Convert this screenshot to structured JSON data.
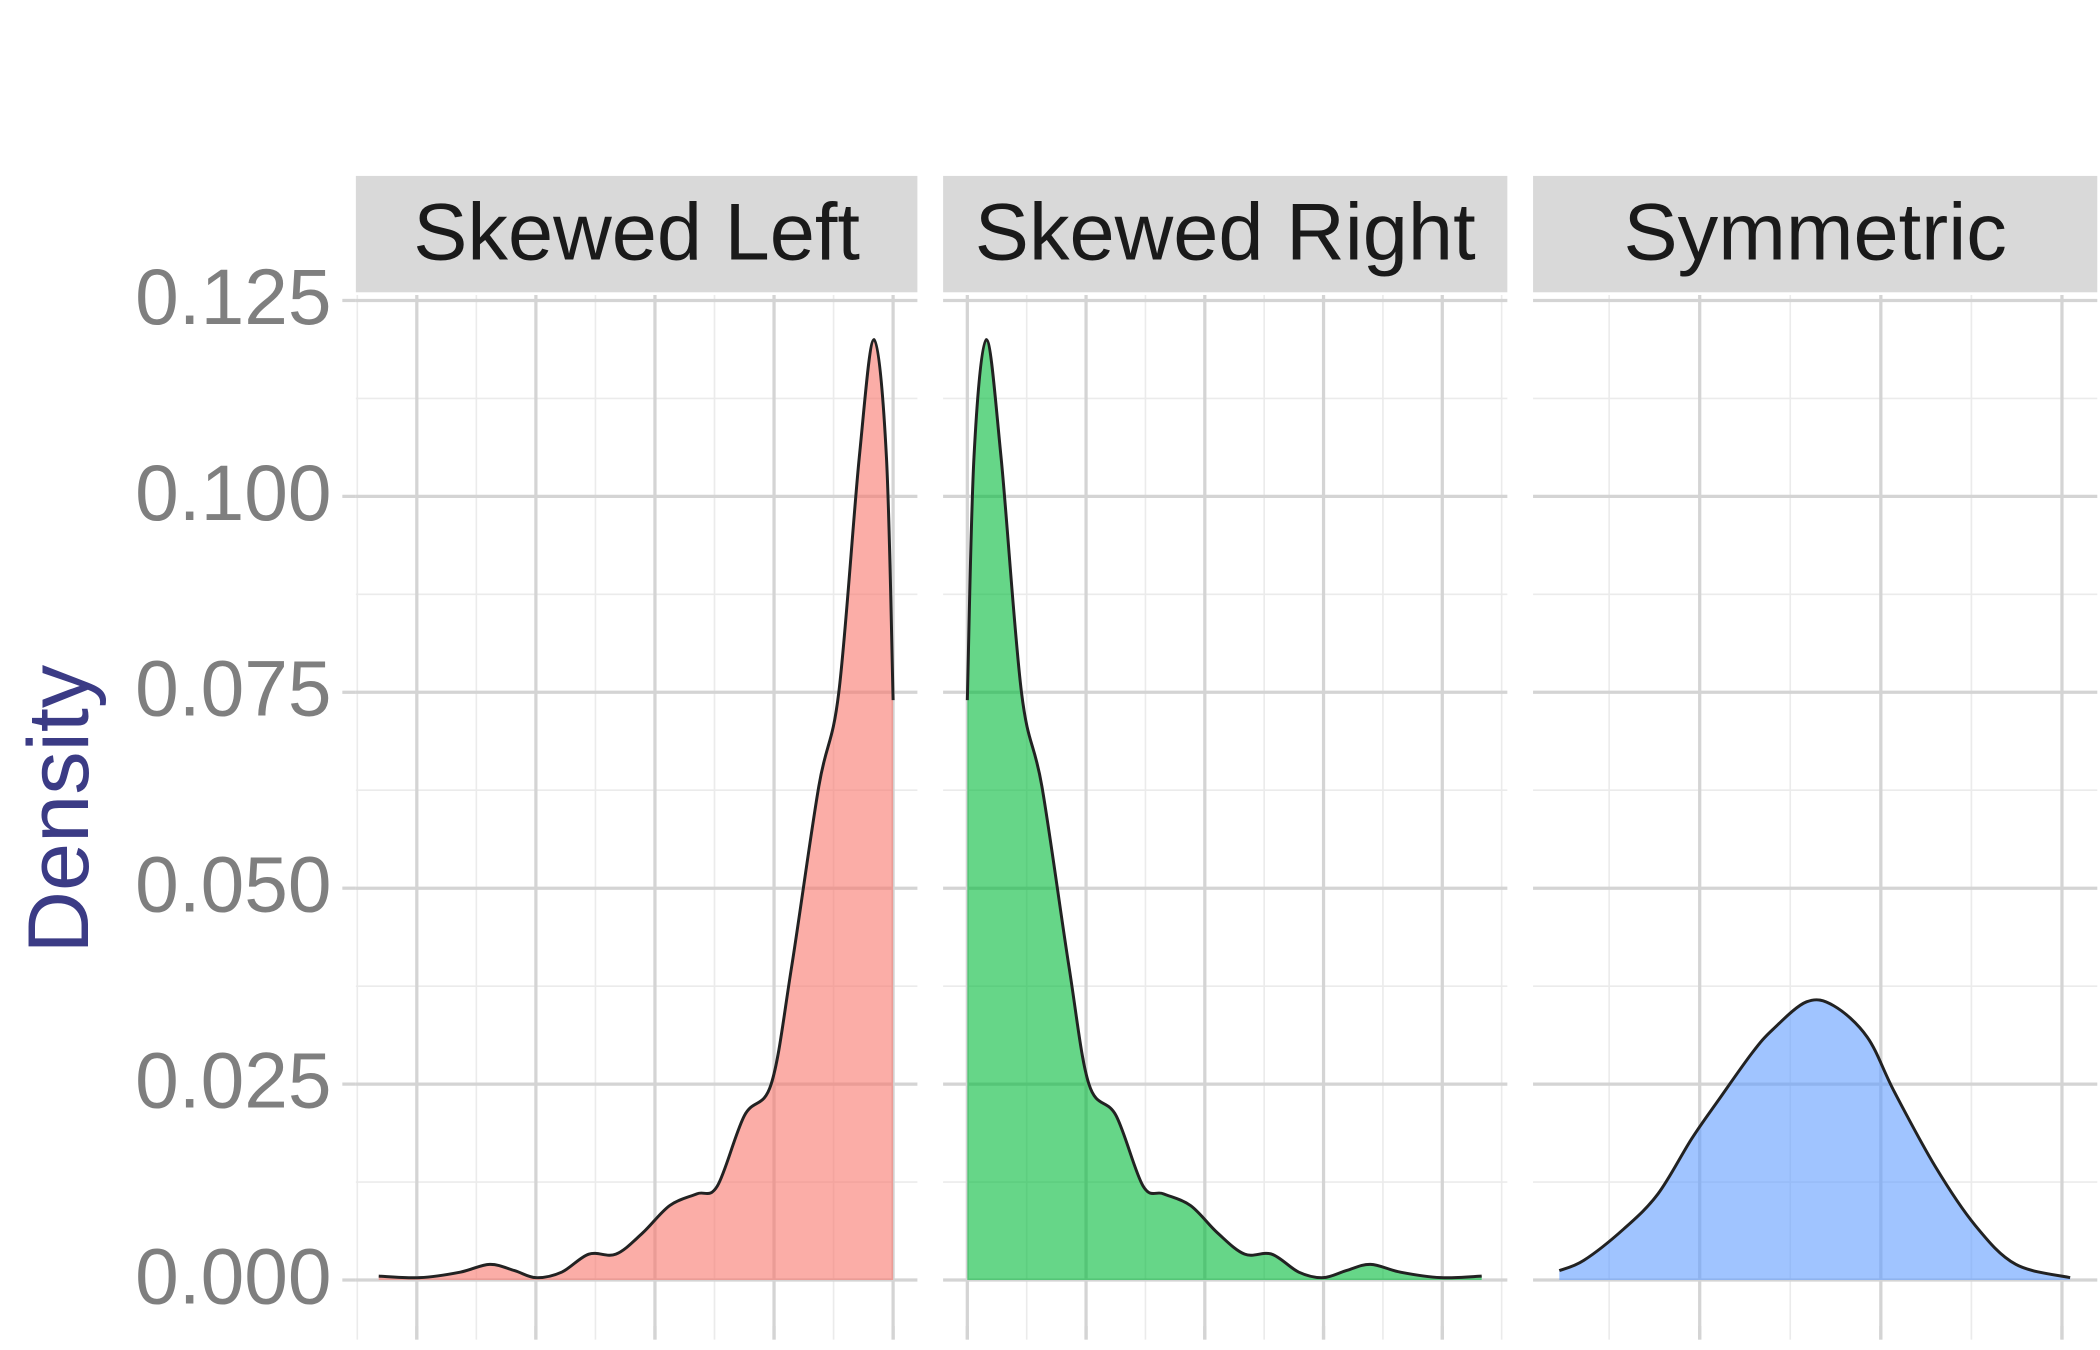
{
  "chart_data": [
    {
      "type": "area",
      "title": "Skewed Left",
      "ylabel": "Density",
      "color": "#F8766D",
      "grid": true,
      "x": [
        -8,
        0.6,
        9.1,
        15.3,
        20.5,
        25,
        30.4,
        36.1,
        41.8,
        47.4,
        53.1,
        58.8,
        63.1,
        68.8,
        74.4,
        78.7,
        84.4,
        88.6,
        92.9,
        96,
        98.6,
        100
      ],
      "values": [
        0.0005,
        0.0003,
        0.001,
        0.002,
        0.0012,
        0.0003,
        0.001,
        0.0033,
        0.0033,
        0.006,
        0.0095,
        0.011,
        0.012,
        0.021,
        0.025,
        0.04,
        0.063,
        0.075,
        0.105,
        0.12,
        0.105,
        0.074
      ],
      "xlim": [
        -12.8,
        105.1
      ],
      "xticks": [
        0,
        25,
        50,
        75,
        100
      ],
      "ylim": [
        -0.0076,
        0.1257
      ],
      "yticks": [
        {
          "value": 0,
          "label": "0.000"
        },
        {
          "value": 0.025,
          "label": "0.025"
        },
        {
          "value": 0.05,
          "label": "0.050"
        },
        {
          "value": 0.075,
          "label": "0.075"
        },
        {
          "value": 0.1,
          "label": "0.100"
        },
        {
          "value": 0.125,
          "label": "0.125"
        }
      ]
    },
    {
      "type": "area",
      "title": "Skewed Right",
      "color": "#00BA38",
      "grid": true,
      "x": [
        0,
        1.4,
        4,
        7.1,
        11.4,
        15.7,
        21.4,
        25.6,
        31.3,
        37,
        41.3,
        47,
        52.7,
        58.4,
        64.1,
        69.8,
        74.9,
        79.8,
        84.9,
        91.2,
        99.7,
        108.3
      ],
      "values": [
        0.074,
        0.105,
        0.12,
        0.105,
        0.075,
        0.063,
        0.04,
        0.025,
        0.021,
        0.012,
        0.011,
        0.0095,
        0.006,
        0.0033,
        0.0033,
        0.001,
        0.0003,
        0.0012,
        0.002,
        0.001,
        0.0003,
        0.0005
      ],
      "xlim": [
        -5.1,
        113.7
      ],
      "xticks": [
        0,
        25,
        50,
        75,
        100
      ],
      "ylim": [
        -0.0076,
        0.1257
      ],
      "yticks": [
        {
          "value": 0,
          "label": "0.000"
        },
        {
          "value": 0.025,
          "label": "0.025"
        },
        {
          "value": 0.05,
          "label": "0.050"
        },
        {
          "value": 0.075,
          "label": "0.075"
        },
        {
          "value": 0.1,
          "label": "0.100"
        },
        {
          "value": 0.125,
          "label": "0.125"
        }
      ]
    },
    {
      "type": "area",
      "title": "Symmetric",
      "color": "#619CFF",
      "grid": true,
      "x": [
        24.5,
        27.2,
        31.6,
        35.4,
        39.1,
        42.1,
        45.8,
        48.1,
        51.8,
        54.8,
        58.5,
        61.5,
        66,
        70.4,
        74.9,
        80.9
      ],
      "values": [
        0.0012,
        0.0025,
        0.0065,
        0.011,
        0.018,
        0.023,
        0.029,
        0.032,
        0.0355,
        0.035,
        0.031,
        0.024,
        0.0145,
        0.007,
        0.002,
        0.0003
      ],
      "xlim": [
        21.6,
        83.9
      ],
      "xticks": [
        40,
        60,
        80
      ],
      "ylim": [
        -0.0076,
        0.1257
      ],
      "yticks": [
        {
          "value": 0,
          "label": "0.000"
        },
        {
          "value": 0.025,
          "label": "0.025"
        },
        {
          "value": 0.05,
          "label": "0.050"
        },
        {
          "value": 0.075,
          "label": "0.075"
        },
        {
          "value": 0.1,
          "label": "0.100"
        },
        {
          "value": 0.125,
          "label": "0.125"
        }
      ]
    }
  ]
}
